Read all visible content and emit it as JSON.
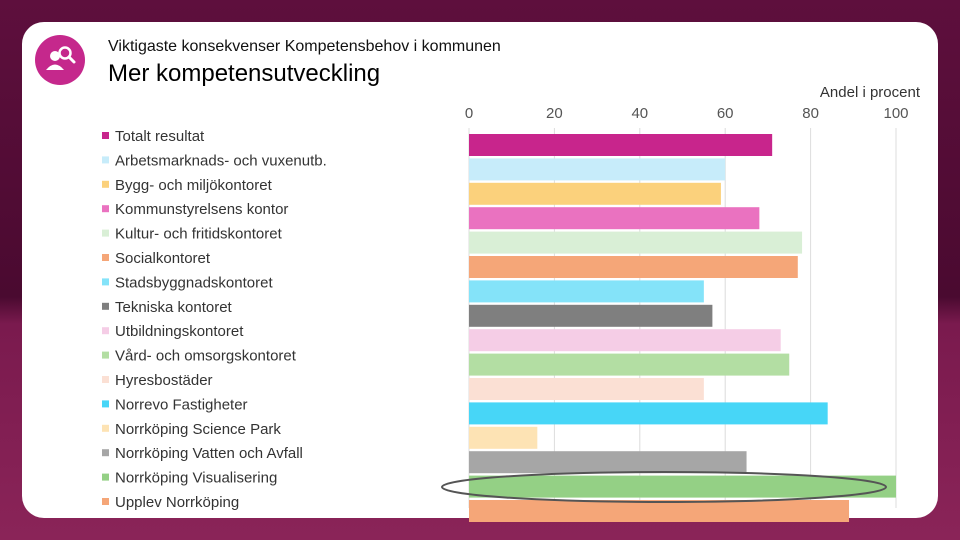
{
  "header": {
    "subtitle": "Viktigaste konsekvenser Kompetensbehov i kommunen",
    "title": "Mer kompetensutveckling"
  },
  "icons": {
    "logo": "people-search-icon"
  },
  "chart_data": {
    "type": "bar",
    "orientation": "horizontal",
    "title": "Mer kompetensutveckling",
    "xlabel": "Andel i procent",
    "xlim": [
      0,
      100
    ],
    "ticks": [
      0,
      20,
      40,
      60,
      80,
      100
    ],
    "grid": true,
    "legend": "left",
    "categories": [
      "Totalt resultat",
      "Arbetsmarknads- och vuxenutb.",
      "Bygg- och miljökontoret",
      "Kommunstyrelsens kontor",
      "Kultur- och fritidskontoret",
      "Socialkontoret",
      "Stadsbyggnadskontoret",
      "Tekniska kontoret",
      "Utbildningskontoret",
      "Vård- och omsorgskontoret",
      "Hyresbostäder",
      "Norrevo Fastigheter",
      "Norrköping Science Park",
      "Norrköping Vatten och Avfall",
      "Norrköping Visualisering",
      "Upplev Norrköping"
    ],
    "values": [
      71,
      60,
      59,
      68,
      78,
      77,
      55,
      57,
      73,
      75,
      55,
      84,
      16,
      65,
      100,
      89
    ],
    "colors": [
      "#c8258c",
      "#c7ecfa",
      "#fbd17c",
      "#ea72c0",
      "#d9efd6",
      "#f5a678",
      "#84e3f9",
      "#7f7f7f",
      "#f5cde6",
      "#b3dea3",
      "#fbe0d4",
      "#47d6f7",
      "#fde3b4",
      "#a6a6a6",
      "#94d085",
      "#f5a678"
    ],
    "highlight": "Upplev Norrköping"
  }
}
